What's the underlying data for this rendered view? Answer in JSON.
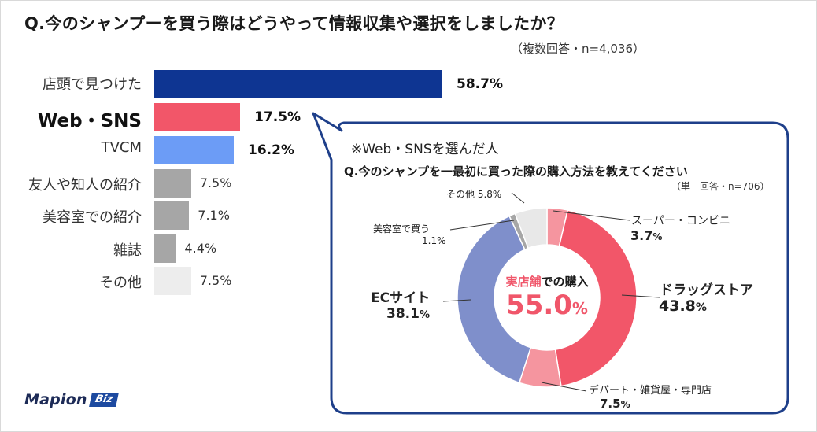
{
  "header": {
    "title": "Q.今のシャンプーを買う際はどうやって情報収集や選択をしましたか？",
    "subtitle": "（複数回答・n=4,036）"
  },
  "chart_data": [
    {
      "type": "bar",
      "orientation": "horizontal",
      "title": "Q.今のシャンプーを買う際はどうやって情報収集や選択をしましたか？",
      "note": "（複数回答・n=4,036）",
      "unit": "%",
      "xlim": [
        0,
        100
      ],
      "categories": [
        "店頭で見つけた",
        "Web・SNS",
        "TVCM",
        "友人や知人の紹介",
        "美容室での紹介",
        "雑誌",
        "その他"
      ],
      "values": [
        58.7,
        17.5,
        16.2,
        7.5,
        7.1,
        4.4,
        7.5
      ],
      "value_labels": [
        "58.7%",
        "17.5%",
        "16.2%",
        "7.5%",
        "7.1%",
        "4.4%",
        "7.5%"
      ],
      "colors": [
        "#0e3592",
        "#f25669",
        "#6c9cf6",
        "#a6a6a6",
        "#a6a6a6",
        "#a6a6a6",
        "#ededed"
      ],
      "highlight": "Web・SNS"
    },
    {
      "type": "pie",
      "variant": "donut",
      "header": "※Web・SNSを選んだ人",
      "title": "Q.今のシャンプを一最初に買った際の購入方法を教えてください",
      "note": "（単一回答・n=706）",
      "unit": "%",
      "categories": [
        "スーパー・コンビニ",
        "ドラッグストア",
        "デパート・雑貨屋・専門店",
        "ECサイト",
        "美容室で買う",
        "その他"
      ],
      "values": [
        3.7,
        43.8,
        7.5,
        38.1,
        1.1,
        5.8
      ],
      "colors": [
        "#f5959f",
        "#f25669",
        "#f5959f",
        "#7f8fcb",
        "#a6a6a6",
        "#e8e8e8"
      ],
      "center_label": {
        "accent": "実店舗",
        "rest": "での購入",
        "value": "55.0",
        "unit": "%"
      }
    }
  ],
  "labels": {
    "super": {
      "name": "スーパー・コンビニ",
      "value": "3.7",
      "unit": "%"
    },
    "drug": {
      "name": "ドラッグストア",
      "value": "43.8",
      "unit": "%"
    },
    "dept": {
      "name": "デパート・雑貨屋・専門店",
      "value": "7.5",
      "unit": "%"
    },
    "ec": {
      "name": "ECサイト",
      "value": "38.1",
      "unit": "%"
    },
    "salon": {
      "name": "美容室で買う",
      "value": "1.1",
      "unit": "%"
    },
    "other": {
      "name": "その他",
      "value": "5.8%"
    }
  },
  "brand": {
    "name": "Mapion",
    "badge": "Biz"
  }
}
